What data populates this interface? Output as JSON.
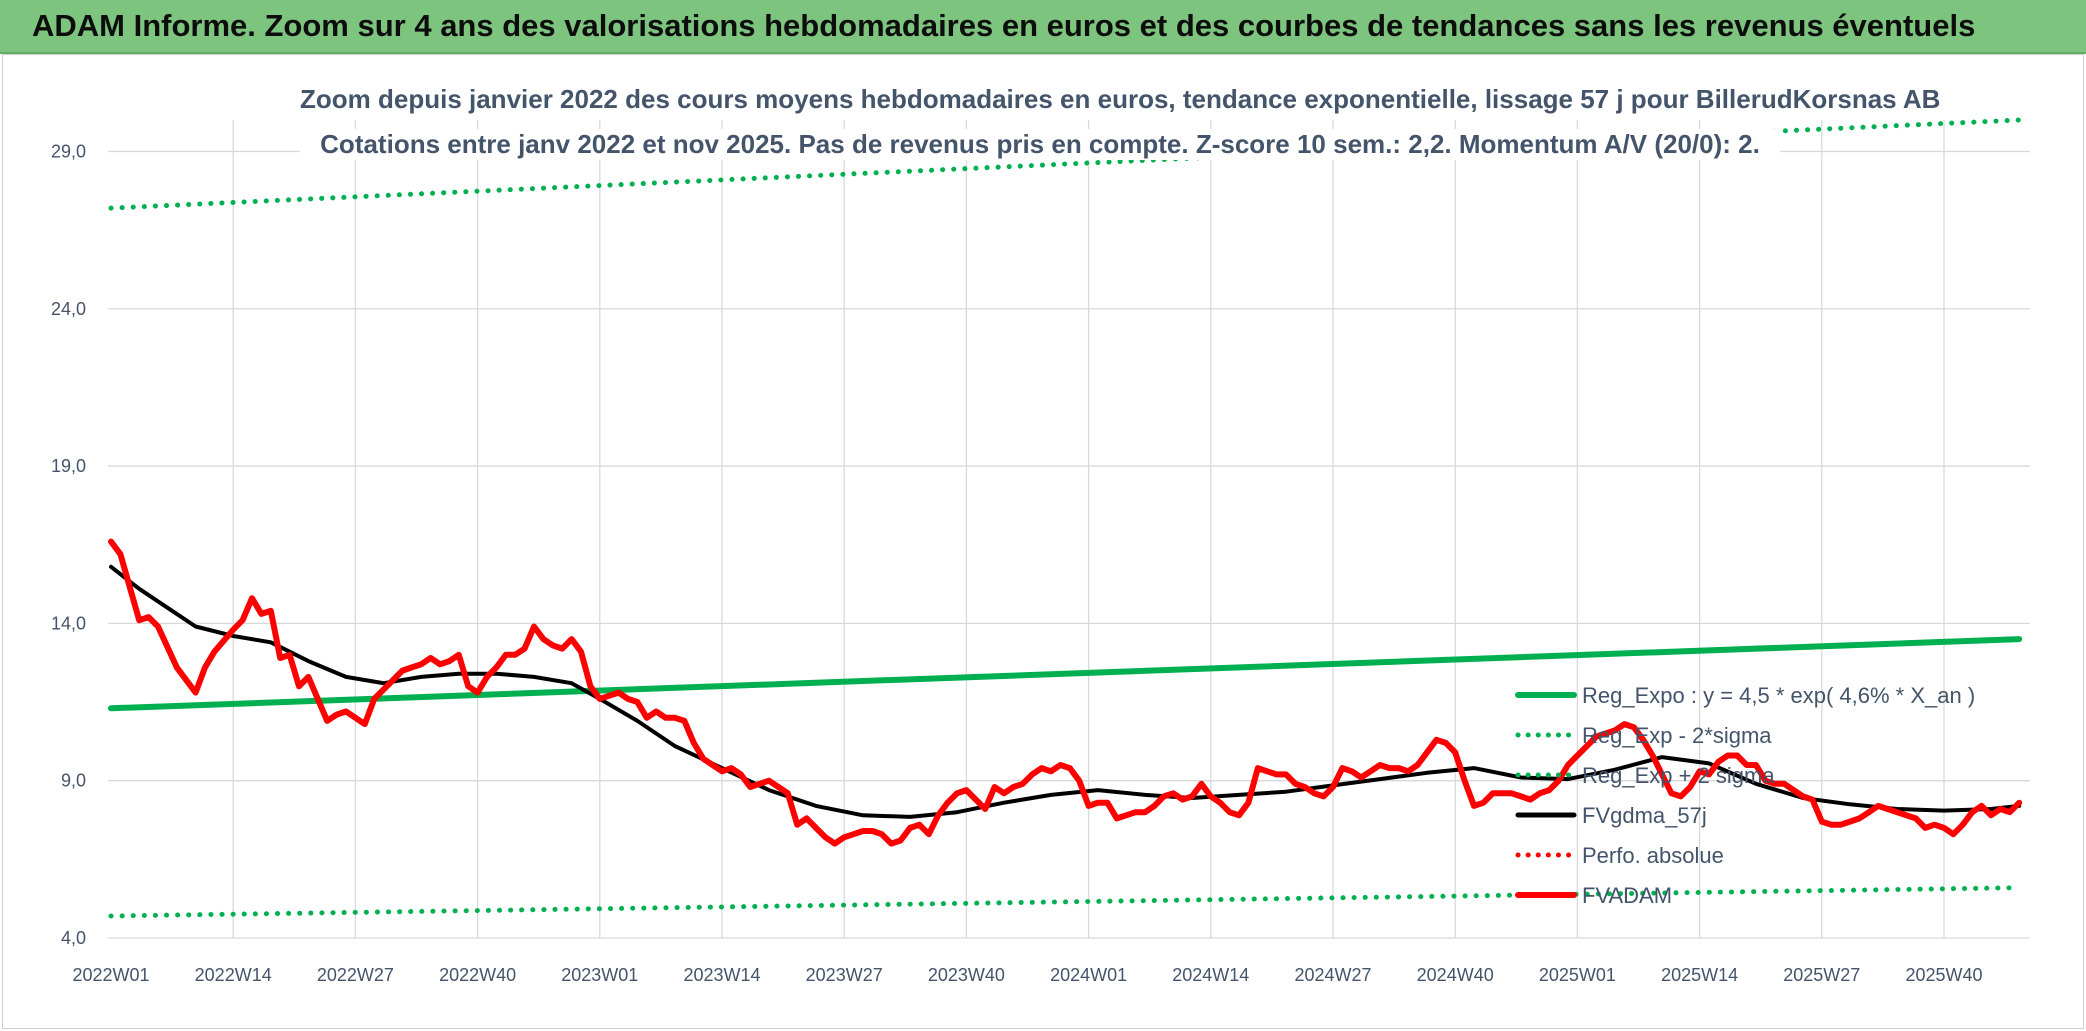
{
  "header": {
    "title": "ADAM Informe. Zoom sur 4 ans des valorisations hebdomadaires en euros et des courbes de tendances sans les revenus éventuels"
  },
  "colors": {
    "banner": "#7dc57e",
    "trend": "#00b050",
    "price": "#ff0000",
    "moving_average": "#000000",
    "grid": "#d9d9d9",
    "text": "#44546a"
  },
  "chart_data": {
    "type": "line",
    "title": "Zoom depuis janvier 2022 des cours moyens hebdomadaires en euros, tendance exponentielle, lissage 57 j pour BillerudKorsnas AB",
    "subtitle": "Cotations entre janv 2022 et nov 2025. Pas de revenus pris en compte. Z-score 10 sem.: 2,2. Momentum A/V (20/0): 2.",
    "xlabel": "",
    "ylabel": "",
    "ylim": [
      4,
      30
    ],
    "yticks": [
      "4,0",
      "9,0",
      "14,0",
      "19,0",
      "24,0",
      "29,0"
    ],
    "xticks": [
      "2022W01",
      "2022W14",
      "2022W27",
      "2022W40",
      "2023W01",
      "2023W14",
      "2023W27",
      "2023W40",
      "2024W01",
      "2024W14",
      "2024W27",
      "2024W40",
      "2025W01",
      "2025W14",
      "2025W27",
      "2025W40"
    ],
    "grid": true,
    "legend_position": "right",
    "series": [
      {
        "name": "Reg_Expo : y = 4,5 * exp( 4,6% *  X_an )",
        "style": "solid",
        "color": "#00b050",
        "x": [
          0,
          203
        ],
        "y": [
          11.3,
          13.5
        ]
      },
      {
        "name": "Reg_Exp - 2*sigma",
        "style": "dotted",
        "color": "#00b050",
        "x": [
          0,
          203
        ],
        "y": [
          4.7,
          5.6
        ]
      },
      {
        "name": "Reg_Exp + 2 sigma",
        "style": "dotted",
        "color": "#00b050",
        "x": [
          0,
          203
        ],
        "y": [
          27.2,
          30.0
        ]
      },
      {
        "name": "FVgdma_57j",
        "style": "solid",
        "color": "#000000",
        "x": [
          0,
          3,
          6,
          9,
          13,
          17,
          21,
          25,
          29,
          33,
          37,
          41,
          45,
          49,
          52,
          56,
          60,
          65,
          70,
          75,
          80,
          85,
          90,
          95,
          100,
          105,
          110,
          115,
          120,
          125,
          130,
          135,
          140,
          145,
          150,
          155,
          160,
          165,
          170,
          175,
          180,
          185,
          190,
          195,
          200,
          203
        ],
        "y": [
          15.8,
          15.1,
          14.5,
          13.9,
          13.6,
          13.4,
          12.8,
          12.3,
          12.1,
          12.3,
          12.4,
          12.4,
          12.3,
          12.1,
          11.6,
          10.9,
          10.1,
          9.4,
          8.7,
          8.2,
          7.9,
          7.85,
          8.0,
          8.3,
          8.55,
          8.7,
          8.55,
          8.45,
          8.55,
          8.65,
          8.85,
          9.05,
          9.25,
          9.4,
          9.1,
          9.05,
          9.35,
          9.75,
          9.55,
          8.9,
          8.45,
          8.25,
          8.1,
          8.05,
          8.1,
          8.2
        ]
      },
      {
        "name": "Perfo. absolue",
        "style": "dotted",
        "color": "#ff0000",
        "x": [],
        "y": []
      },
      {
        "name": "FVADAM",
        "style": "solid",
        "color": "#ff0000",
        "x": [
          0,
          1,
          3,
          4,
          5,
          7,
          9,
          10,
          11,
          13,
          14,
          15,
          16,
          17,
          18,
          19,
          20,
          21,
          22,
          23,
          24,
          25,
          26,
          27,
          28,
          29,
          31,
          32,
          33,
          34,
          35,
          36,
          37,
          38,
          39,
          40,
          41,
          42,
          43,
          44,
          45,
          46,
          47,
          48,
          49,
          50,
          51,
          52,
          53,
          54,
          55,
          56,
          57,
          58,
          59,
          60,
          61,
          62,
          63,
          64,
          65,
          66,
          67,
          68,
          69,
          70,
          71,
          72,
          73,
          74,
          75,
          76,
          77,
          78,
          79,
          80,
          81,
          82,
          83,
          84,
          85,
          86,
          87,
          88,
          89,
          90,
          91,
          92,
          93,
          94,
          95,
          96,
          97,
          98,
          99,
          100,
          101,
          102,
          103,
          104,
          105,
          106,
          107,
          108,
          109,
          110,
          111,
          112,
          113,
          114,
          115,
          116,
          117,
          118,
          119,
          120,
          121,
          122,
          123,
          124,
          125,
          126,
          127,
          128,
          129,
          130,
          131,
          132,
          133,
          134,
          135,
          136,
          137,
          138,
          139,
          140,
          141,
          142,
          143,
          144,
          145,
          146,
          147,
          148,
          149,
          150,
          151,
          152,
          153,
          154,
          155,
          156,
          157,
          158,
          159,
          160,
          161,
          162,
          163,
          164,
          165,
          166,
          167,
          168,
          169,
          170,
          171,
          172,
          173,
          174,
          175,
          176,
          177,
          178,
          179,
          180,
          181,
          182,
          183,
          184,
          185,
          186,
          187,
          188,
          189,
          190,
          191,
          192,
          193,
          194,
          195,
          196,
          197,
          198,
          199,
          200,
          201,
          202,
          203
        ],
        "y": [
          16.6,
          16.2,
          14.1,
          14.2,
          13.9,
          12.6,
          11.8,
          12.6,
          13.1,
          13.8,
          14.1,
          14.8,
          14.3,
          14.4,
          12.9,
          13.0,
          12.0,
          12.3,
          11.6,
          10.9,
          11.1,
          11.2,
          11.0,
          10.8,
          11.6,
          11.9,
          12.5,
          12.6,
          12.7,
          12.9,
          12.7,
          12.8,
          13.0,
          12.0,
          11.8,
          12.3,
          12.6,
          13.0,
          13.0,
          13.2,
          13.9,
          13.5,
          13.3,
          13.2,
          13.5,
          13.1,
          12.0,
          11.6,
          11.7,
          11.8,
          11.6,
          11.5,
          11.0,
          11.2,
          11.0,
          11.0,
          10.9,
          10.2,
          9.7,
          9.5,
          9.3,
          9.4,
          9.2,
          8.8,
          8.9,
          9.0,
          8.8,
          8.6,
          7.6,
          7.8,
          7.5,
          7.2,
          7.0,
          7.2,
          7.3,
          7.4,
          7.4,
          7.3,
          7.0,
          7.1,
          7.5,
          7.6,
          7.3,
          7.9,
          8.3,
          8.6,
          8.7,
          8.4,
          8.1,
          8.8,
          8.6,
          8.8,
          8.9,
          9.2,
          9.4,
          9.3,
          9.5,
          9.4,
          9.0,
          8.2,
          8.3,
          8.3,
          7.8,
          7.9,
          8.0,
          8.0,
          8.2,
          8.5,
          8.6,
          8.4,
          8.5,
          8.9,
          8.5,
          8.3,
          8.0,
          7.9,
          8.3,
          9.4,
          9.3,
          9.2,
          9.2,
          8.9,
          8.8,
          8.6,
          8.5,
          8.8,
          9.4,
          9.3,
          9.1,
          9.3,
          9.5,
          9.4,
          9.4,
          9.3,
          9.5,
          9.9,
          10.3,
          10.2,
          9.9,
          9.0,
          8.2,
          8.3,
          8.6,
          8.6,
          8.6,
          8.5,
          8.4,
          8.6,
          8.7,
          9.0,
          9.5,
          9.8,
          10.1,
          10.4,
          10.5,
          10.6,
          10.8,
          10.7,
          10.3,
          9.8,
          9.2,
          8.6,
          8.5,
          8.8,
          9.3,
          9.2,
          9.6,
          9.8,
          9.8,
          9.5,
          9.5,
          9.0,
          8.9,
          8.9,
          8.7,
          8.5,
          8.4,
          7.7,
          7.6,
          7.6,
          7.7,
          7.8,
          8.0,
          8.2,
          8.1,
          8.0,
          7.9,
          7.8,
          7.5,
          7.6,
          7.5,
          7.3,
          7.6,
          8.0,
          8.2,
          7.9,
          8.1,
          8.0,
          8.3
        ]
      }
    ]
  }
}
